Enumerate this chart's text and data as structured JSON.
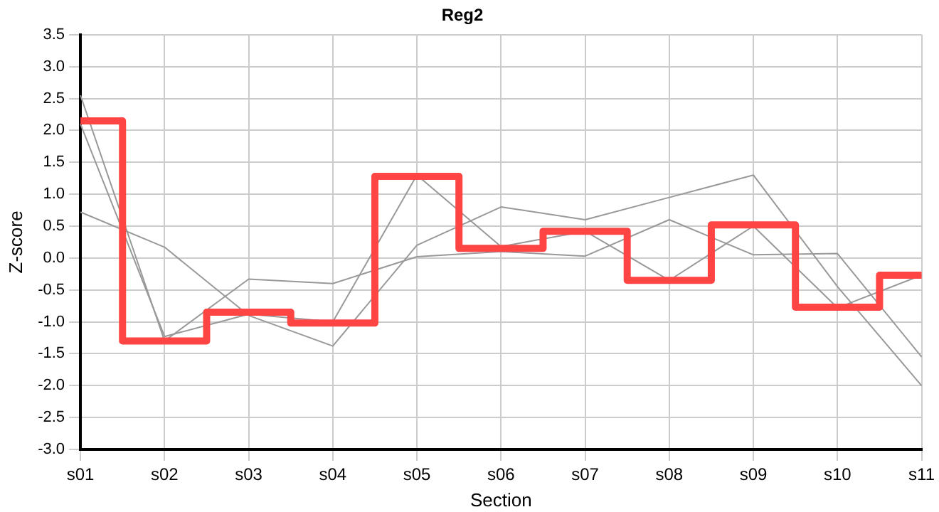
{
  "chart_data": {
    "type": "line",
    "title": "Reg2",
    "xlabel": "Section",
    "ylabel": "Z-score",
    "categories": [
      "s01",
      "s02",
      "s03",
      "s04",
      "s05",
      "s06",
      "s07",
      "s08",
      "s09",
      "s10",
      "s11"
    ],
    "series": [
      {
        "type": "line",
        "color": "#999999",
        "values": [
          0.72,
          0.17,
          -0.9,
          -1.38,
          0.2,
          0.8,
          0.6,
          0.95,
          1.3,
          -0.45,
          -2.0
        ]
      },
      {
        "type": "line",
        "color": "#999999",
        "values": [
          2.55,
          -1.3,
          -0.33,
          -0.4,
          0.02,
          0.1,
          0.03,
          0.6,
          0.05,
          0.07,
          -1.55
        ]
      },
      {
        "type": "line",
        "color": "#999999",
        "values": [
          2.1,
          -1.23,
          -0.88,
          -1.0,
          1.3,
          0.18,
          0.42,
          -0.35,
          0.5,
          -0.78,
          -0.27
        ]
      },
      {
        "type": "step",
        "color": "#ff4444",
        "values": [
          2.15,
          -1.3,
          -0.85,
          -1.02,
          1.28,
          0.15,
          0.42,
          -0.35,
          0.52,
          -0.77,
          -0.27
        ]
      }
    ],
    "ylim": [
      -3,
      3.5
    ],
    "yticks": [
      {
        "value": -3,
        "label": "-3.0"
      },
      {
        "value": -2.5,
        "label": "-2.5"
      },
      {
        "value": -2,
        "label": "-2.0"
      },
      {
        "value": -1.5,
        "label": "-1.5"
      },
      {
        "value": -1,
        "label": "-1.0"
      },
      {
        "value": -0.5,
        "label": "-0.5"
      },
      {
        "value": 0,
        "label": "0.0"
      },
      {
        "value": 0.5,
        "label": "0.5"
      },
      {
        "value": 1,
        "label": "1.0"
      },
      {
        "value": 1.5,
        "label": "1.5"
      },
      {
        "value": 2,
        "label": "2.0"
      },
      {
        "value": 2.5,
        "label": "2.5"
      },
      {
        "value": 3,
        "label": "3.0"
      },
      {
        "value": 3.5,
        "label": "3.5"
      }
    ],
    "grid": true,
    "legend": false,
    "marker": "none",
    "line_style": "solid"
  }
}
